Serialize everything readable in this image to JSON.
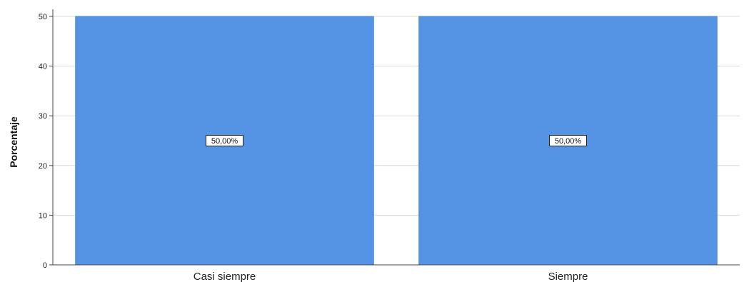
{
  "chart_data": {
    "type": "bar",
    "categories": [
      "Casi siempre",
      "Siempre"
    ],
    "values": [
      50,
      50
    ],
    "data_labels": [
      "50,00%",
      "50,00%"
    ],
    "title": "",
    "xlabel": "",
    "ylabel": "Porcentaje",
    "ylim": [
      0,
      50
    ],
    "yticks": [
      0,
      10,
      20,
      30,
      40,
      50
    ],
    "grid": true,
    "legend": "none",
    "bar_color": "#5594e4",
    "bar_edge_color": "#4a84cf"
  }
}
